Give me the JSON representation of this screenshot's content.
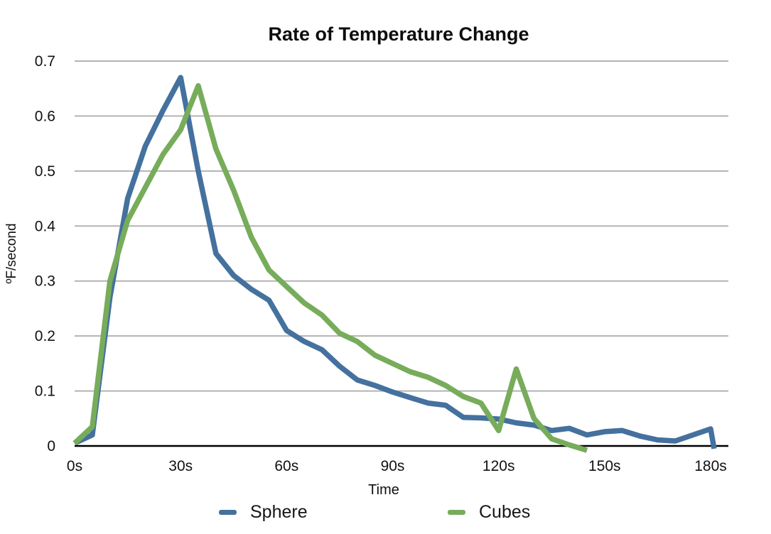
{
  "chart_data": {
    "type": "line",
    "title": "Rate of Temperature Change",
    "xlabel": "Time",
    "ylabel": "ºF/second",
    "xlim": [
      0,
      185
    ],
    "ylim": [
      0,
      0.7
    ],
    "x_ticks": [
      0,
      30,
      60,
      90,
      120,
      150,
      180
    ],
    "x_tick_suffix": "s",
    "y_ticks": [
      0,
      0.1,
      0.2,
      0.3,
      0.4,
      0.5,
      0.6,
      0.7
    ],
    "grid": "horizontal-only",
    "legend_position": "bottom",
    "series": [
      {
        "name": "Sphere",
        "color": "#44719e",
        "x": [
          0,
          5,
          10,
          15,
          20,
          25,
          30,
          35,
          40,
          45,
          50,
          55,
          60,
          65,
          70,
          75,
          80,
          85,
          90,
          95,
          100,
          105,
          110,
          115,
          120,
          125,
          130,
          135,
          140,
          145,
          150,
          155,
          160,
          165,
          170,
          175,
          180,
          181
        ],
        "values": [
          0.005,
          0.02,
          0.27,
          0.45,
          0.545,
          0.61,
          0.67,
          0.5,
          0.35,
          0.31,
          0.285,
          0.265,
          0.21,
          0.19,
          0.175,
          0.145,
          0.12,
          0.11,
          0.098,
          0.088,
          0.078,
          0.074,
          0.052,
          0.051,
          0.049,
          0.042,
          0.038,
          0.028,
          0.032,
          0.02,
          0.026,
          0.028,
          0.018,
          0.011,
          0.009,
          0.02,
          0.031,
          -0.005
        ]
      },
      {
        "name": "Cubes",
        "color": "#77ac5b",
        "x": [
          0,
          5,
          10,
          15,
          20,
          25,
          30,
          35,
          40,
          45,
          50,
          55,
          60,
          65,
          70,
          75,
          80,
          85,
          90,
          95,
          100,
          105,
          110,
          115,
          120,
          125,
          130,
          135,
          140,
          145
        ],
        "values": [
          0.005,
          0.035,
          0.3,
          0.41,
          0.47,
          0.53,
          0.575,
          0.655,
          0.54,
          0.465,
          0.38,
          0.32,
          0.29,
          0.26,
          0.238,
          0.205,
          0.19,
          0.165,
          0.15,
          0.135,
          0.125,
          0.11,
          0.09,
          0.078,
          0.028,
          0.14,
          0.05,
          0.013,
          0.002,
          -0.008
        ]
      }
    ],
    "colors": {
      "gridline": "#b3b3b3",
      "axis_line": "#000000",
      "text": "#111111"
    }
  }
}
